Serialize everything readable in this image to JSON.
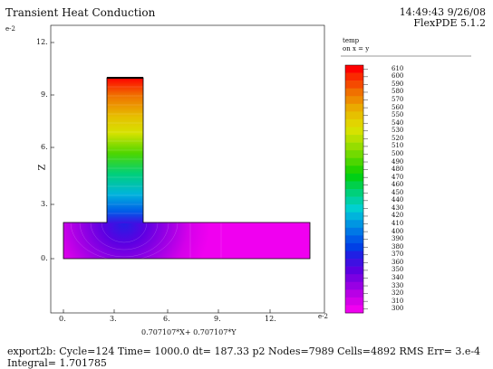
{
  "header": {
    "title": "Transient Heat Conduction",
    "timestamp": "14:49:43 9/26/08",
    "version": "FlexPDE 5.1.2"
  },
  "plot": {
    "y_exponent": "e-2",
    "x_exponent": "e-2",
    "y_axis_label": "Z",
    "x_axis_label": "0.707107*X+ 0.707107*Y",
    "y_ticks": [
      "12.",
      "9.",
      "6.",
      "3.",
      "0."
    ],
    "x_ticks": [
      "0.",
      "3.",
      "6.",
      "9.",
      "12."
    ]
  },
  "legend": {
    "title_line1": "temp",
    "title_line2": "on x = y",
    "levels": [
      "610",
      "600",
      "590",
      "580",
      "570",
      "560",
      "550",
      "540",
      "530",
      "520",
      "510",
      "500",
      "490",
      "480",
      "470",
      "460",
      "450",
      "440",
      "430",
      "420",
      "410",
      "400",
      "390",
      "380",
      "370",
      "360",
      "350",
      "340",
      "330",
      "320",
      "310",
      "300"
    ],
    "colors": [
      "#ff0000",
      "#fa2a00",
      "#f54a00",
      "#f07000",
      "#ee8c00",
      "#eaaa00",
      "#e6c000",
      "#e2d400",
      "#d6e200",
      "#b8e000",
      "#96dd00",
      "#72da00",
      "#4cd600",
      "#22d200",
      "#00d016",
      "#00d04a",
      "#00d07a",
      "#00d0a6",
      "#00d0d0",
      "#00b4dc",
      "#0096e2",
      "#0078e6",
      "#005ae8",
      "#0040e6",
      "#2020e4",
      "#3e10e2",
      "#5c00e2",
      "#7a00e2",
      "#9800e4",
      "#b800e6",
      "#d400ea",
      "#f000f0"
    ]
  },
  "footer": {
    "line1": "export2b:  Cycle=124  Time= 1000.0  dt= 187.33  p2  Nodes=7989 Cells=4892 RMS Err= 3.e-4",
    "line2": "Integral=  1.701785"
  }
}
